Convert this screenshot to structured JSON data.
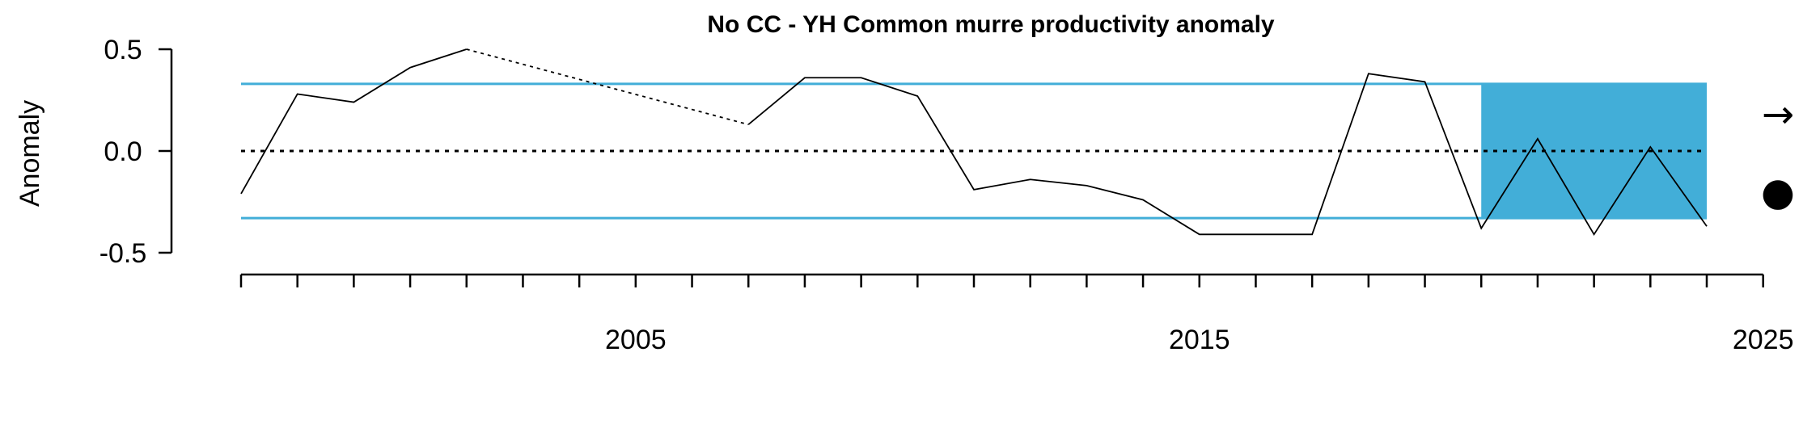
{
  "chart_data": {
    "type": "line",
    "title": "No CC - YH  Common murre productivity anomaly",
    "xlabel": "",
    "ylabel": "Anomaly",
    "xlim": [
      1998,
      2025
    ],
    "ylim": [
      -0.5,
      0.5
    ],
    "x_tick_labels": [
      "2005",
      "2015",
      "2025"
    ],
    "y_tick_labels": [
      "0.5",
      "0.0",
      "-0.5"
    ],
    "series": [
      {
        "x": [
          1998,
          1999,
          2000,
          2001,
          2002,
          2007,
          2008,
          2009,
          2010,
          2011,
          2012,
          2013,
          2014,
          2015,
          2016,
          2017,
          2018,
          2019,
          2020,
          2021,
          2022,
          2023,
          2024
        ],
        "values": [
          -0.21,
          0.28,
          0.24,
          0.41,
          0.5,
          0.13,
          0.36,
          0.36,
          0.27,
          -0.19,
          -0.14,
          -0.17,
          -0.24,
          -0.41,
          -0.41,
          -0.41,
          0.38,
          0.34,
          -0.38,
          0.06,
          -0.41,
          0.02,
          -0.37
        ],
        "gap_after_x": 2002
      }
    ],
    "mean": 0.0,
    "sd_bounds": [
      -0.33,
      0.33
    ],
    "shaded_recent_window": [
      2020,
      2024
    ],
    "colors": {
      "line": "#000000",
      "sd_lines": "#42aed8",
      "shade": "#42aed8"
    },
    "trend_symbol": "→",
    "mean_symbol": "●"
  }
}
